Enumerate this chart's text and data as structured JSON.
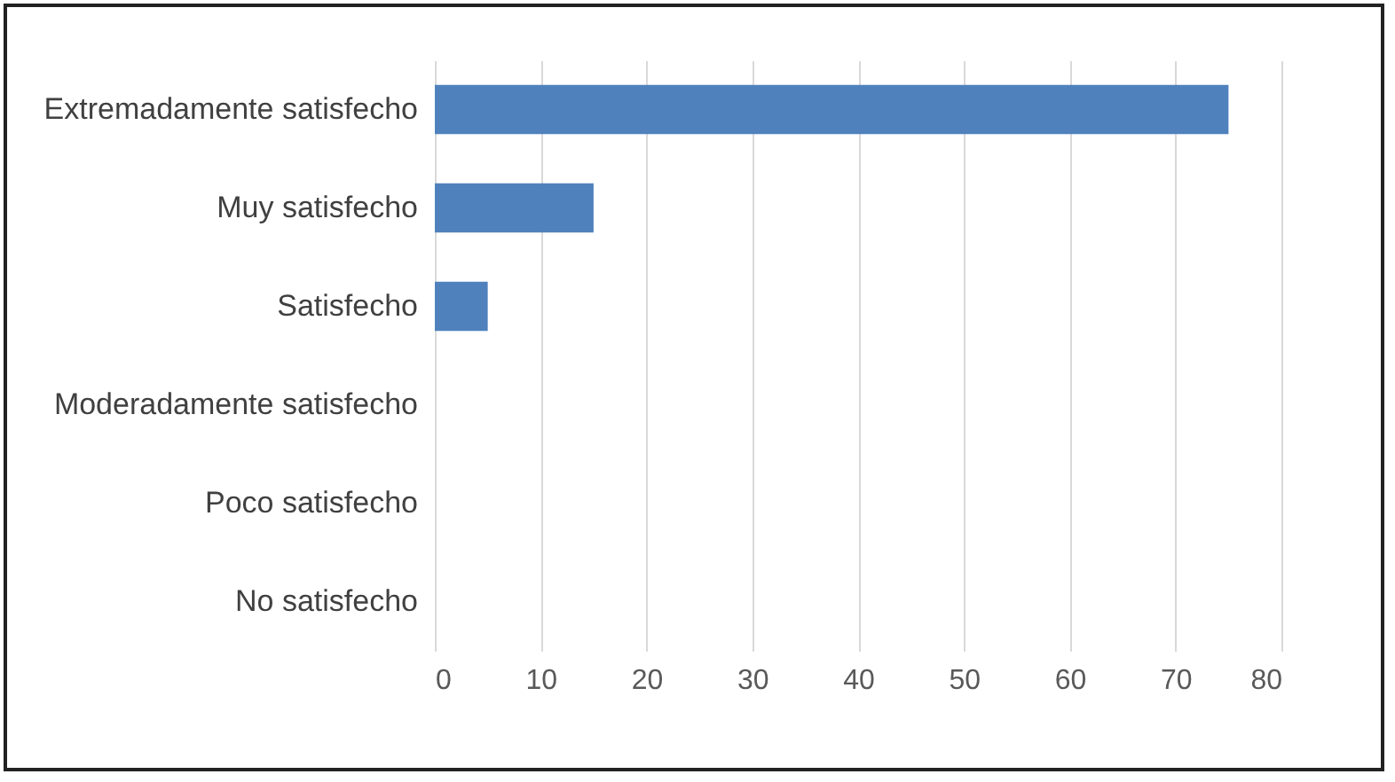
{
  "chart_data": {
    "type": "bar",
    "orientation": "horizontal",
    "categories": [
      "Extremadamente satisfecho",
      "Muy satisfecho",
      "Satisfecho",
      "Moderadamente satisfecho",
      "Poco satisfecho",
      "No satisfecho"
    ],
    "values": [
      75,
      15,
      5,
      0,
      0,
      0
    ],
    "color": "#4f81bd",
    "xlim": [
      0,
      80
    ],
    "xticks": [
      0,
      10,
      20,
      30,
      40,
      50,
      60,
      70,
      80
    ],
    "grid": "x"
  }
}
